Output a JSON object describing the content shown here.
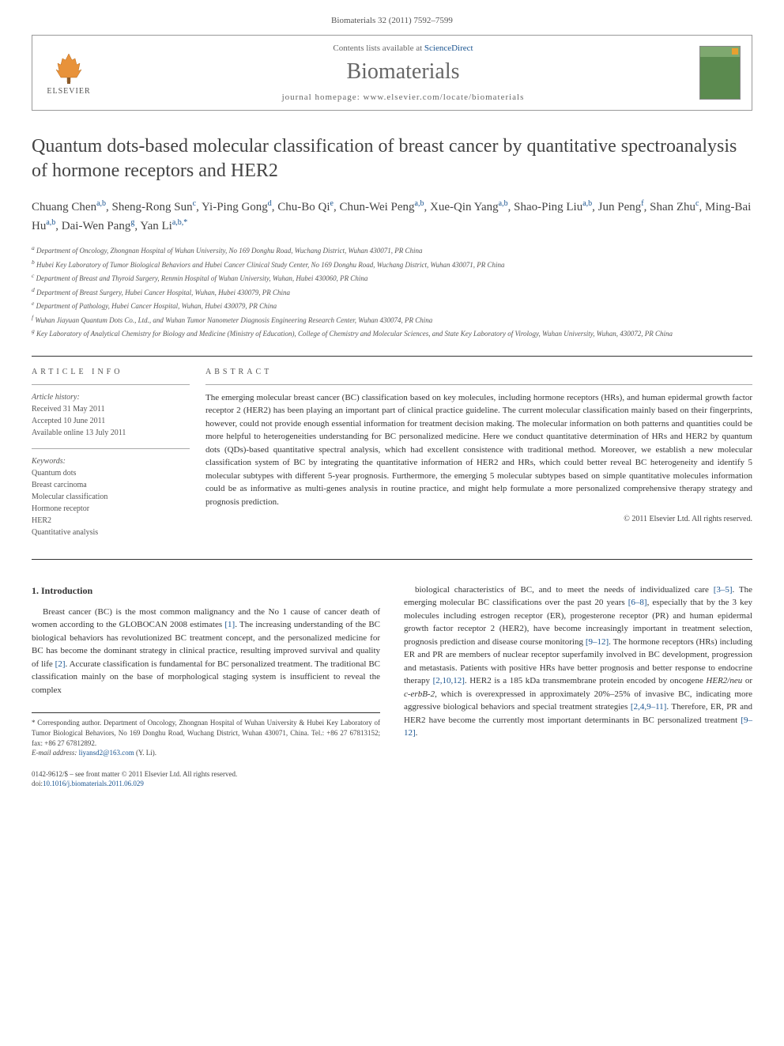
{
  "journal_citation": "Biomaterials 32 (2011) 7592–7599",
  "header": {
    "contents_line_prefix": "Contents lists available at ",
    "contents_line_link": "ScienceDirect",
    "journal_name": "Biomaterials",
    "homepage_prefix": "journal homepage: ",
    "homepage_url": "www.elsevier.com/locate/biomaterials",
    "elsevier_label": "ELSEVIER"
  },
  "title": "Quantum dots-based molecular classification of breast cancer by quantitative spectroanalysis of hormone receptors and HER2",
  "authors_html": "Chuang Chen<sup>a,b</sup>, Sheng-Rong Sun<sup>c</sup>, Yi-Ping Gong<sup>d</sup>, Chu-Bo Qi<sup>e</sup>, Chun-Wei Peng<sup>a,b</sup>, Xue-Qin Yang<sup>a,b</sup>, Shao-Ping Liu<sup>a,b</sup>, Jun Peng<sup>f</sup>, Shan Zhu<sup>c</sup>, Ming-Bai Hu<sup>a,b</sup>, Dai-Wen Pang<sup>g</sup>, Yan Li<sup>a,b,*</sup>",
  "affiliations": {
    "a": "Department of Oncology, Zhongnan Hospital of Wuhan University, No 169 Donghu Road, Wuchang District, Wuhan 430071, PR China",
    "b": "Hubei Key Laboratory of Tumor Biological Behaviors and Hubei Cancer Clinical Study Center, No 169 Donghu Road, Wuchang District, Wuhan 430071, PR China",
    "c": "Department of Breast and Thyroid Surgery, Renmin Hospital of Wuhan University, Wuhan, Hubei 430060, PR China",
    "d": "Department of Breast Surgery, Hubei Cancer Hospital, Wuhan, Hubei 430079, PR China",
    "e": "Department of Pathology, Hubei Cancer Hospital, Wuhan, Hubei 430079, PR China",
    "f": "Wuhan Jiayuan Quantum Dots Co., Ltd., and Wuhan Tumor Nanometer Diagnosis Engineering Research Center, Wuhan 430074, PR China",
    "g": "Key Laboratory of Analytical Chemistry for Biology and Medicine (Ministry of Education), College of Chemistry and Molecular Sciences, and State Key Laboratory of Virology, Wuhan University, Wuhan, 430072, PR China"
  },
  "article_info": {
    "label": "ARTICLE INFO",
    "history_label": "Article history:",
    "received": "Received 31 May 2011",
    "accepted": "Accepted 10 June 2011",
    "online": "Available online 13 July 2011",
    "keywords_label": "Keywords:",
    "keywords": [
      "Quantum dots",
      "Breast carcinoma",
      "Molecular classification",
      "Hormone receptor",
      "HER2",
      "Quantitative analysis"
    ]
  },
  "abstract": {
    "label": "ABSTRACT",
    "text": "The emerging molecular breast cancer (BC) classification based on key molecules, including hormone receptors (HRs), and human epidermal growth factor receptor 2 (HER2) has been playing an important part of clinical practice guideline. The current molecular classification mainly based on their fingerprints, however, could not provide enough essential information for treatment decision making. The molecular information on both patterns and quantities could be more helpful to heterogeneities understanding for BC personalized medicine. Here we conduct quantitative determination of HRs and HER2 by quantum dots (QDs)-based quantitative spectral analysis, which had excellent consistence with traditional method. Moreover, we establish a new molecular classification system of BC by integrating the quantitative information of HER2 and HRs, which could better reveal BC heterogeneity and identify 5 molecular subtypes with different 5-year prognosis. Furthermore, the emerging 5 molecular subtypes based on simple quantitative molecules information could be as informative as multi-genes analysis in routine practice, and might help formulate a more personalized comprehensive therapy strategy and prognosis prediction.",
    "copyright": "© 2011 Elsevier Ltd. All rights reserved."
  },
  "body": {
    "heading": "1. Introduction",
    "col1_html": "Breast cancer (BC) is the most common malignancy and the No 1 cause of cancer death of women according to the GLOBOCAN 2008 estimates <span class='ref-link'>[1]</span>. The increasing understanding of the BC biological behaviors has revolutionized BC treatment concept, and the personalized medicine for BC has become the dominant strategy in clinical practice, resulting improved survival and quality of life <span class='ref-link'>[2]</span>. Accurate classification is fundamental for BC personalized treatment. The traditional BC classification mainly on the base of morphological staging system is insufficient to reveal the complex",
    "col2_html": "biological characteristics of BC, and to meet the needs of individualized care <span class='ref-link'>[3–5]</span>. The emerging molecular BC classifications over the past 20 years <span class='ref-link'>[6–8]</span>, especially that by the 3 key molecules including estrogen receptor (ER), progesterone receptor (PR) and human epidermal growth factor receptor 2 (HER2), have become increasingly important in treatment selection, prognosis prediction and disease course monitoring <span class='ref-link'>[9–12]</span>. The hormone receptors (HRs) including ER and PR are members of nuclear receptor superfamily involved in BC development, progression and metastasis. Patients with positive HRs have better prognosis and better response to endocrine therapy <span class='ref-link'>[2,10,12]</span>. HER2 is a 185 kDa transmembrane protein encoded by oncogene <i>HER2/neu</i> or <i>c-erbB-2</i>, which is overexpressed in approximately 20%–25% of invasive BC, indicating more aggressive biological behaviors and special treatment strategies <span class='ref-link'>[2,4,9–11]</span>. Therefore, ER, PR and HER2 have become the currently most important determinants in BC personalized treatment <span class='ref-link'>[9–12]</span>."
  },
  "footnotes": {
    "corresponding": "* Corresponding author. Department of Oncology, Zhongnan Hospital of Wuhan University & Hubei Key Laboratory of Tumor Biological Behaviors, No 169 Donghu Road, Wuchang District, Wuhan 430071, China. Tel.: +86 27 67813152; fax: +86 27 67812892.",
    "email_label": "E-mail address: ",
    "email": "liyansd2@163.com",
    "email_suffix": " (Y. Li)."
  },
  "footer": {
    "issn_line": "0142-9612/$ – see front matter © 2011 Elsevier Ltd. All rights reserved.",
    "doi_prefix": "doi:",
    "doi": "10.1016/j.biomaterials.2011.06.029"
  },
  "colors": {
    "link": "#1a5490",
    "text": "#333333",
    "muted": "#666666",
    "border": "#999999"
  }
}
